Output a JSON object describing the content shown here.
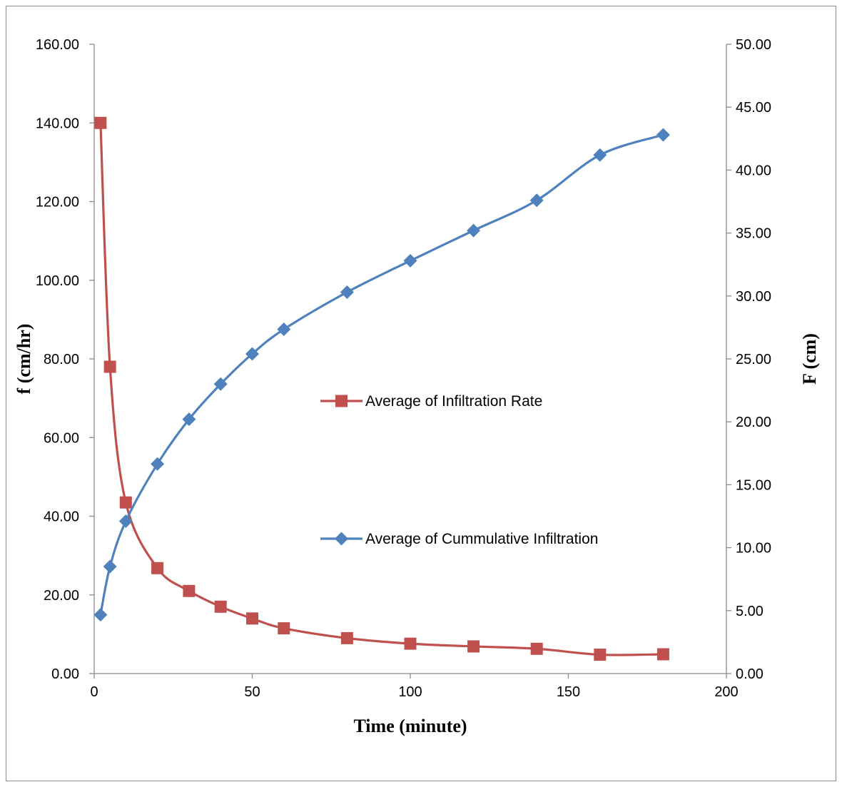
{
  "chart_data": {
    "type": "line",
    "xlabel": "Time (minute)",
    "ylabel_left": "f (cm/hr)",
    "ylabel_right": "F (cm)",
    "xlim": [
      0,
      200
    ],
    "ylim_left": [
      0,
      160
    ],
    "ylim_right": [
      0,
      50
    ],
    "x_ticks": [
      "0",
      "50",
      "100",
      "150",
      "200"
    ],
    "y_left_ticks": [
      "0.00",
      "20.00",
      "40.00",
      "60.00",
      "80.00",
      "100.00",
      "120.00",
      "140.00",
      "160.00"
    ],
    "y_right_ticks": [
      "0.00",
      "5.00",
      "10.00",
      "15.00",
      "20.00",
      "25.00",
      "30.00",
      "35.00",
      "40.00",
      "45.00",
      "50.00"
    ],
    "grid": false,
    "series": [
      {
        "name": "Average of  Infiltration Rate",
        "axis": "left",
        "color": "#c0504d",
        "marker": "square",
        "x": [
          2,
          5,
          10,
          20,
          30,
          40,
          50,
          60,
          80,
          100,
          120,
          140,
          160,
          180
        ],
        "y": [
          140.0,
          78.0,
          43.5,
          26.8,
          21.0,
          17.0,
          14.0,
          11.5,
          9.0,
          7.6,
          6.9,
          6.3,
          4.8,
          4.9
        ]
      },
      {
        "name": "Average of Cummulative Infiltration",
        "axis": "right",
        "color": "#4f81bd",
        "marker": "diamond",
        "x": [
          2,
          5,
          10,
          20,
          30,
          40,
          50,
          60,
          80,
          100,
          120,
          140,
          160,
          180
        ],
        "y": [
          4.67,
          8.5,
          12.1,
          16.65,
          20.2,
          23.0,
          25.4,
          27.35,
          30.3,
          32.8,
          35.2,
          37.6,
          41.2,
          42.8
        ]
      }
    ]
  }
}
